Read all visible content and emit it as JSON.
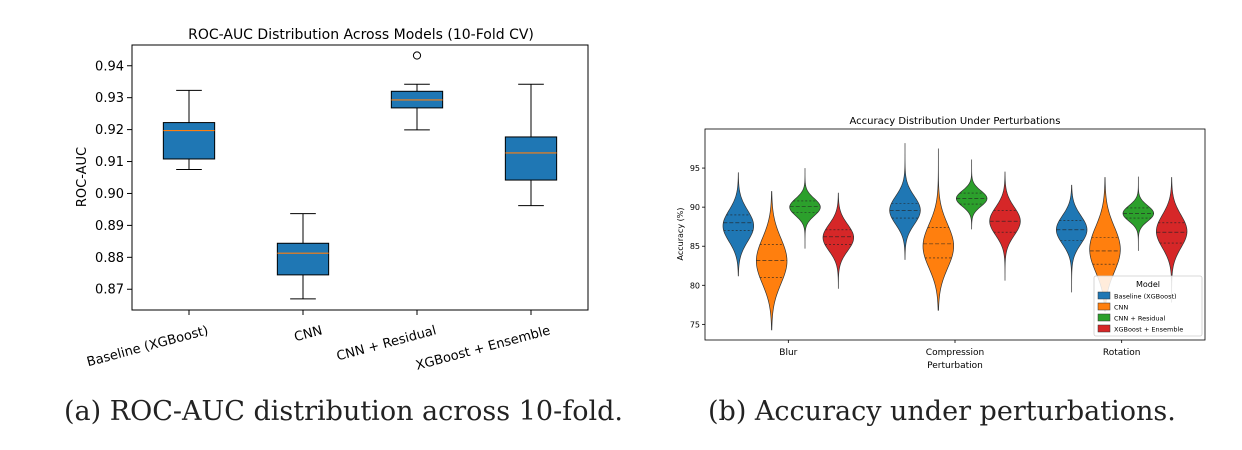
{
  "captions": {
    "a": "(a) ROC-AUC distribution across 10-fold.",
    "b": "(b) Accuracy under perturbations."
  },
  "chart_data": [
    {
      "type": "box",
      "title": "ROC-AUC Distribution Across Models (10-Fold CV)",
      "xlabel": "",
      "ylabel": "ROC-AUC",
      "ylim": [
        0.8635,
        0.9465
      ],
      "yticks": [
        0.87,
        0.88,
        0.89,
        0.9,
        0.91,
        0.92,
        0.93,
        0.94
      ],
      "ytick_labels": [
        "0.87",
        "0.88",
        "0.89",
        "0.90",
        "0.91",
        "0.92",
        "0.93",
        "0.94"
      ],
      "categories": [
        "Baseline (XGBoost)",
        "CNN",
        "CNN + Residual",
        "XGBoost + Ensemble"
      ],
      "box_color": "#1f77b4",
      "median_color": "#ff7f0e",
      "boxes": [
        {
          "whislo": 0.9075,
          "q1": 0.9108,
          "med": 0.9197,
          "q3": 0.9222,
          "whishi": 0.9323,
          "fliers": []
        },
        {
          "whislo": 0.867,
          "q1": 0.8745,
          "med": 0.8813,
          "q3": 0.8844,
          "whishi": 0.8937,
          "fliers": []
        },
        {
          "whislo": 0.9199,
          "q1": 0.9268,
          "med": 0.9293,
          "q3": 0.932,
          "whishi": 0.9342,
          "fliers": [
            0.9432
          ]
        },
        {
          "whislo": 0.8962,
          "q1": 0.9042,
          "med": 0.9127,
          "q3": 0.9177,
          "whishi": 0.9342,
          "fliers": []
        }
      ]
    },
    {
      "type": "violin",
      "title": "Accuracy Distribution Under Perturbations",
      "xlabel": "Perturbation",
      "ylabel": "Accuracy (%)",
      "ylim": [
        73,
        100
      ],
      "yticks": [
        75,
        80,
        85,
        90,
        95
      ],
      "categories": [
        "Blur",
        "Compression",
        "Rotation"
      ],
      "legend": {
        "title": "Model",
        "position": "lower-right",
        "entries": [
          "Baseline (XGBoost)",
          "CNN",
          "CNN + Residual",
          "XGBoost + Ensemble"
        ]
      },
      "series": [
        {
          "name": "Baseline (XGBoost)",
          "color": "#1f77b4",
          "groups": [
            {
              "min": 81.2,
              "max": 94.4,
              "mean": 87.6,
              "sd": 2.0,
              "q1": 87.0,
              "med": 88.0,
              "q3": 89.0
            },
            {
              "min": 83.3,
              "max": 98.2,
              "mean": 89.6,
              "sd": 1.8,
              "q1": 88.6,
              "med": 89.6,
              "q3": 90.5
            },
            {
              "min": 79.1,
              "max": 92.8,
              "mean": 87.1,
              "sd": 1.8,
              "q1": 85.7,
              "med": 87.1,
              "q3": 88.3
            }
          ]
        },
        {
          "name": "CNN",
          "color": "#ff7f0e",
          "groups": [
            {
              "min": 74.3,
              "max": 92.0,
              "mean": 83.1,
              "sd": 2.9,
              "q1": 81.0,
              "med": 83.2,
              "q3": 85.2
            },
            {
              "min": 76.8,
              "max": 97.5,
              "mean": 85.0,
              "sd": 2.8,
              "q1": 83.5,
              "med": 85.3,
              "q3": 87.4
            },
            {
              "min": 76.7,
              "max": 93.8,
              "mean": 84.6,
              "sd": 2.9,
              "q1": 82.7,
              "med": 84.4,
              "q3": 86.1
            }
          ]
        },
        {
          "name": "CNN + Residual",
          "color": "#2ca02c",
          "groups": [
            {
              "min": 84.7,
              "max": 95.0,
              "mean": 90.0,
              "sd": 1.1,
              "q1": 89.3,
              "med": 90.1,
              "q3": 90.8
            },
            {
              "min": 87.2,
              "max": 96.1,
              "mean": 91.1,
              "sd": 1.0,
              "q1": 90.4,
              "med": 91.1,
              "q3": 91.8
            },
            {
              "min": 84.4,
              "max": 93.9,
              "mean": 89.2,
              "sd": 1.0,
              "q1": 88.6,
              "med": 89.2,
              "q3": 89.9
            }
          ]
        },
        {
          "name": "XGBoost + Ensemble",
          "color": "#d62728",
          "groups": [
            {
              "min": 79.6,
              "max": 91.8,
              "mean": 86.1,
              "sd": 1.7,
              "q1": 85.2,
              "med": 86.2,
              "q3": 87.1
            },
            {
              "min": 80.6,
              "max": 94.5,
              "mean": 88.2,
              "sd": 1.8,
              "q1": 86.8,
              "med": 88.2,
              "q3": 89.6
            },
            {
              "min": 77.8,
              "max": 93.8,
              "mean": 86.9,
              "sd": 2.1,
              "q1": 85.4,
              "med": 86.8,
              "q3": 88.0
            }
          ]
        }
      ]
    }
  ]
}
